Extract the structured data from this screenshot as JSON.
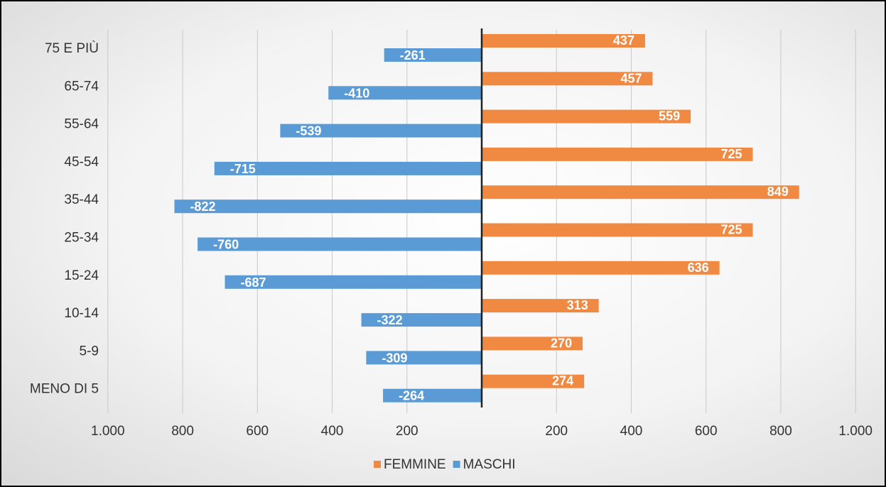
{
  "chart_data": {
    "type": "bar",
    "orientation": "horizontal",
    "categories": [
      "75 E PIÙ",
      "65-74",
      "55-64",
      "45-54",
      "35-44",
      "25-34",
      "15-24",
      "10-14",
      "5-9",
      "MENO DI 5"
    ],
    "series": [
      {
        "name": "FEMMINE",
        "color": "#F08A43",
        "values": [
          437,
          457,
          559,
          725,
          849,
          725,
          636,
          313,
          270,
          274
        ],
        "value_labels": [
          "437",
          "457",
          "559",
          "725",
          "849",
          "725",
          "636",
          "313",
          "270",
          "274"
        ]
      },
      {
        "name": "MASCHI",
        "color": "#5B9BD5",
        "values": [
          -261,
          -410,
          -539,
          -715,
          -822,
          -760,
          -687,
          -322,
          -309,
          -264
        ],
        "value_labels": [
          "-261",
          "-410",
          "-539",
          "-715",
          "-822",
          "-760",
          "-687",
          "-322",
          "-309",
          "-264"
        ]
      }
    ],
    "x_ticks": [
      -1000,
      -800,
      -600,
      -400,
      -200,
      200,
      400,
      600,
      800,
      1000
    ],
    "x_tick_labels": [
      "1.000",
      "800",
      "600",
      "400",
      "200",
      "200",
      "400",
      "600",
      "800",
      "1.000"
    ],
    "xlim": [
      -1000,
      1000
    ],
    "grid": true,
    "legend_position": "bottom",
    "title": "",
    "xlabel": "",
    "ylabel": ""
  }
}
